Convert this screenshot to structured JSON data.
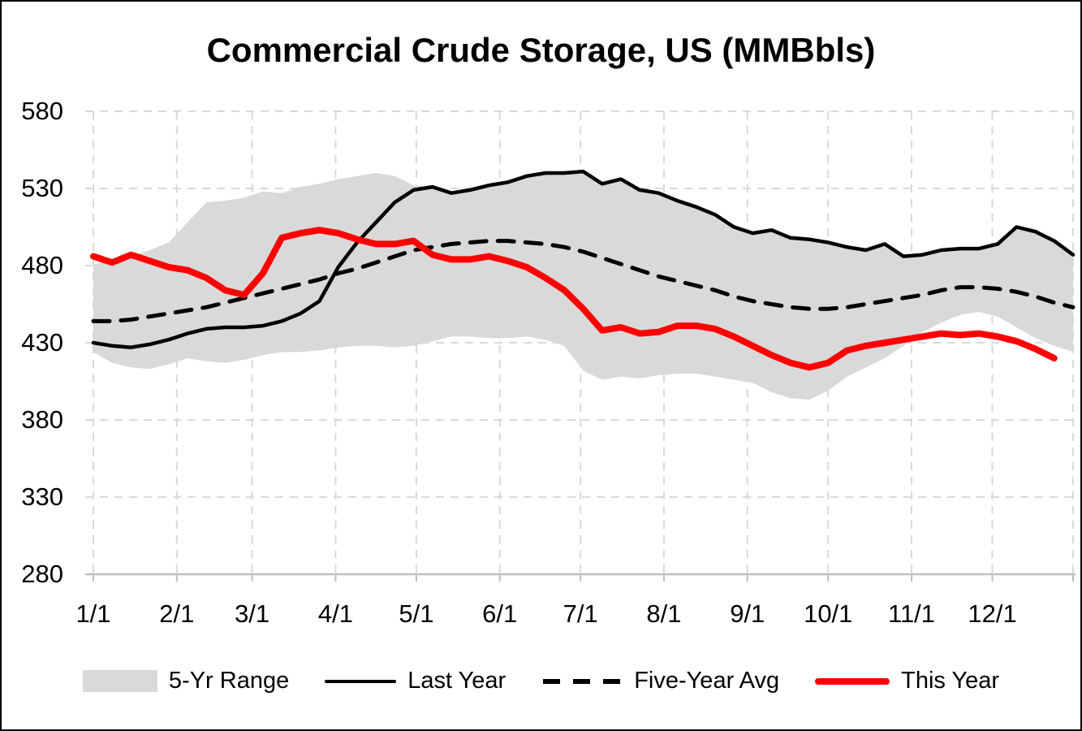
{
  "title": "Commercial Crude Storage, US (MMBbls)",
  "legend": {
    "items": [
      {
        "label": "5-Yr Range",
        "swatch": "gray-band"
      },
      {
        "label": "Last Year",
        "swatch": "black-solid-line"
      },
      {
        "label": "Five-Year Avg",
        "swatch": "black-dashed-line"
      },
      {
        "label": "This Year",
        "swatch": "red-solid-line"
      }
    ]
  },
  "colors": {
    "band": "#D9D9D9",
    "last_year": "#000000",
    "five_year_avg": "#000000",
    "this_year": "#FF0000",
    "gridline": "#D9D9D9",
    "axis": "#BFBFBF"
  },
  "chart_data": {
    "type": "line",
    "title": "Commercial Crude Storage, US (MMBbls)",
    "xlabel": "",
    "ylabel": "",
    "ylim": [
      280,
      580
    ],
    "x_max_day": 364,
    "grid": true,
    "legend_position": "bottom",
    "y_ticks": [
      580,
      530,
      480,
      430,
      380,
      330,
      280
    ],
    "x_ticks": [
      {
        "label": "1/1",
        "day": 0
      },
      {
        "label": "2/1",
        "day": 31
      },
      {
        "label": "3/1",
        "day": 59
      },
      {
        "label": "4/1",
        "day": 90
      },
      {
        "label": "5/1",
        "day": 120
      },
      {
        "label": "6/1",
        "day": 151
      },
      {
        "label": "7/1",
        "day": 181
      },
      {
        "label": "8/1",
        "day": 212
      },
      {
        "label": "9/1",
        "day": 243
      },
      {
        "label": "10/1",
        "day": 273
      },
      {
        "label": "11/1",
        "day": 304
      },
      {
        "label": "12/1",
        "day": 334
      }
    ],
    "series": [
      {
        "name": "5-Yr Range",
        "type": "band",
        "color": "#D9D9D9",
        "days": [
          0,
          7,
          14,
          21,
          28,
          35,
          42,
          49,
          56,
          63,
          70,
          77,
          84,
          91,
          98,
          105,
          112,
          119,
          126,
          133,
          140,
          147,
          154,
          161,
          168,
          175,
          182,
          189,
          196,
          203,
          210,
          217,
          224,
          231,
          238,
          245,
          252,
          259,
          266,
          273,
          280,
          287,
          294,
          301,
          308,
          315,
          322,
          329,
          336,
          343,
          350,
          357,
          364
        ],
        "upper": [
          481,
          483,
          486,
          490,
          495,
          508,
          521,
          522,
          524,
          528,
          527,
          531,
          533,
          536,
          538,
          540,
          538,
          532,
          531,
          527,
          529,
          532,
          534,
          538,
          540,
          540,
          541,
          533,
          536,
          529,
          527,
          522,
          518,
          513,
          505,
          501,
          503,
          498,
          497,
          495,
          492,
          490,
          494,
          486,
          487,
          490,
          491,
          491,
          494,
          505,
          502,
          496,
          487
        ],
        "lower": [
          424,
          417,
          414,
          413,
          416,
          420,
          418,
          417,
          419,
          422,
          424,
          424,
          425,
          427,
          428,
          428,
          427,
          428,
          431,
          434,
          434,
          433,
          433,
          434,
          432,
          428,
          412,
          406,
          408,
          407,
          409,
          410,
          410,
          408,
          406,
          404,
          398,
          394,
          393,
          399,
          408,
          414,
          420,
          428,
          437,
          443,
          448,
          450,
          447,
          440,
          433,
          428,
          424
        ]
      },
      {
        "name": "Last Year",
        "type": "line",
        "style": "solid",
        "color": "#000000",
        "days": [
          0,
          7,
          14,
          21,
          28,
          35,
          42,
          49,
          56,
          63,
          70,
          77,
          84,
          91,
          98,
          105,
          112,
          119,
          126,
          133,
          140,
          147,
          154,
          161,
          168,
          175,
          182,
          189,
          196,
          203,
          210,
          217,
          224,
          231,
          238,
          245,
          252,
          259,
          266,
          273,
          280,
          287,
          294,
          301,
          308,
          315,
          322,
          329,
          336,
          343,
          350,
          357,
          364
        ],
        "values": [
          430,
          428,
          427,
          429,
          432,
          436,
          439,
          440,
          440,
          441,
          444,
          449,
          457,
          479,
          495,
          508,
          521,
          529,
          531,
          527,
          529,
          532,
          534,
          538,
          540,
          540,
          541,
          533,
          536,
          529,
          527,
          522,
          518,
          513,
          505,
          501,
          503,
          498,
          497,
          495,
          492,
          490,
          494,
          486,
          487,
          490,
          491,
          491,
          494,
          505,
          502,
          496,
          487
        ]
      },
      {
        "name": "Five-Year Avg",
        "type": "line",
        "style": "dashed",
        "color": "#000000",
        "days": [
          0,
          7,
          14,
          21,
          28,
          35,
          42,
          49,
          56,
          63,
          70,
          77,
          84,
          91,
          98,
          105,
          112,
          119,
          126,
          133,
          140,
          147,
          154,
          161,
          168,
          175,
          182,
          189,
          196,
          203,
          210,
          217,
          224,
          231,
          238,
          245,
          252,
          259,
          266,
          273,
          280,
          287,
          294,
          301,
          308,
          315,
          322,
          329,
          336,
          343,
          350,
          357,
          364
        ],
        "values": [
          444,
          444,
          445,
          447,
          449,
          451,
          453,
          456,
          459,
          462,
          465,
          468,
          471,
          475,
          478,
          482,
          486,
          490,
          492,
          494,
          495,
          496,
          496,
          495,
          494,
          492,
          489,
          485,
          481,
          477,
          473,
          470,
          467,
          464,
          460,
          457,
          455,
          453,
          452,
          452,
          453,
          455,
          457,
          459,
          461,
          464,
          466,
          466,
          465,
          463,
          460,
          456,
          453
        ]
      },
      {
        "name": "This Year",
        "type": "line",
        "style": "solid",
        "color": "#FF0000",
        "days": [
          0,
          7,
          14,
          21,
          28,
          35,
          42,
          49,
          56,
          63,
          70,
          77,
          84,
          91,
          98,
          105,
          112,
          119,
          126,
          133,
          140,
          147,
          154,
          161,
          168,
          175,
          182,
          189,
          196,
          203,
          210,
          217,
          224,
          231,
          238,
          245,
          252,
          259,
          266,
          273,
          280,
          287,
          294,
          301,
          308,
          315,
          322,
          329,
          336,
          343,
          350,
          357
        ],
        "values": [
          486,
          482,
          487,
          483,
          479,
          477,
          472,
          464,
          461,
          475,
          498,
          501,
          503,
          501,
          497,
          494,
          494,
          496,
          487,
          484,
          484,
          486,
          483,
          479,
          472,
          464,
          452,
          438,
          440,
          436,
          437,
          441,
          441,
          439,
          434,
          428,
          422,
          417,
          414,
          417,
          425,
          428,
          430,
          432,
          434,
          436,
          435,
          436,
          434,
          431,
          426,
          420
        ]
      }
    ]
  }
}
